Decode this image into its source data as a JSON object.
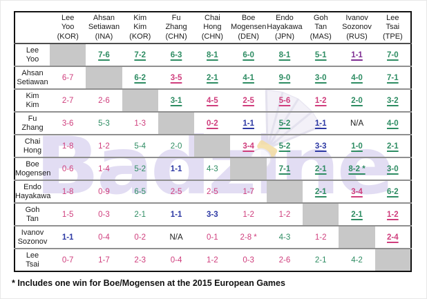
{
  "watermark": {
    "text": "Badzine"
  },
  "footnote": "* Includes one win for Boe/Mogensen at the 2015 European Games",
  "colors": {
    "win": "#2d8c62",
    "loss": "#cf3d7c",
    "tie": "#2c38a3",
    "tie_special": "#7e2d92",
    "na": "#1a1a1a",
    "diagonal": "#c8c8c8",
    "border": "#111111",
    "row_line": "#8f8f8f",
    "watermark": "#e2ddf3"
  },
  "columns": [
    {
      "line1": "Lee",
      "line2": "Yoo",
      "country": "(KOR)"
    },
    {
      "line1": "Ahsan",
      "line2": "Setiawan",
      "country": "(INA)"
    },
    {
      "line1": "Kim",
      "line2": "Kim",
      "country": "(KOR)"
    },
    {
      "line1": "Fu",
      "line2": "Zhang",
      "country": "(CHN)"
    },
    {
      "line1": "Chai",
      "line2": "Hong",
      "country": "(CHN)"
    },
    {
      "line1": "Boe",
      "line2": "Mogensen",
      "country": "(DEN)"
    },
    {
      "line1": "Endo",
      "line2": "Hayakawa",
      "country": "(JPN)"
    },
    {
      "line1": "Goh",
      "line2": "Tan",
      "country": "(MAS)"
    },
    {
      "line1": "Ivanov",
      "line2": "Sozonov",
      "country": "(RUS)"
    },
    {
      "line1": "Lee",
      "line2": "Tsai",
      "country": "(TPE)"
    }
  ],
  "rows": [
    {
      "line1": "Lee",
      "line2": "Yoo",
      "cells": [
        {
          "diag": true
        },
        {
          "v": "7-6",
          "r": "win",
          "u": true
        },
        {
          "v": "7-2",
          "r": "win",
          "u": true
        },
        {
          "v": "6-3",
          "r": "win",
          "u": true
        },
        {
          "v": "8-1",
          "r": "win",
          "u": true
        },
        {
          "v": "6-0",
          "r": "win",
          "u": true
        },
        {
          "v": "8-1",
          "r": "win",
          "u": true
        },
        {
          "v": "5-1",
          "r": "win",
          "u": true
        },
        {
          "v": "1-1",
          "r": "tiep",
          "u": true
        },
        {
          "v": "7-0",
          "r": "win",
          "u": true
        }
      ]
    },
    {
      "line1": "Ahsan",
      "line2": "Setiawan",
      "cells": [
        {
          "v": "6-7",
          "r": "loss",
          "u": false
        },
        {
          "diag": true
        },
        {
          "v": "6-2",
          "r": "win",
          "u": true
        },
        {
          "v": "3-5",
          "r": "loss",
          "u": true
        },
        {
          "v": "2-1",
          "r": "win",
          "u": true
        },
        {
          "v": "4-1",
          "r": "win",
          "u": true
        },
        {
          "v": "9-0",
          "r": "win",
          "u": true
        },
        {
          "v": "3-0",
          "r": "win",
          "u": true
        },
        {
          "v": "4-0",
          "r": "win",
          "u": true
        },
        {
          "v": "7-1",
          "r": "win",
          "u": true
        }
      ]
    },
    {
      "line1": "Kim",
      "line2": "Kim",
      "cells": [
        {
          "v": "2-7",
          "r": "loss",
          "u": false
        },
        {
          "v": "2-6",
          "r": "loss",
          "u": false
        },
        {
          "diag": true
        },
        {
          "v": "3-1",
          "r": "win",
          "u": true
        },
        {
          "v": "4-5",
          "r": "loss",
          "u": true
        },
        {
          "v": "2-5",
          "r": "loss",
          "u": true
        },
        {
          "v": "5-6",
          "r": "loss",
          "u": true
        },
        {
          "v": "1-2",
          "r": "loss",
          "u": true
        },
        {
          "v": "2-0",
          "r": "win",
          "u": true
        },
        {
          "v": "3-2",
          "r": "win",
          "u": true
        }
      ]
    },
    {
      "line1": "Fu",
      "line2": "Zhang",
      "cells": [
        {
          "v": "3-6",
          "r": "loss",
          "u": false
        },
        {
          "v": "5-3",
          "r": "win",
          "u": false
        },
        {
          "v": "1-3",
          "r": "loss",
          "u": false
        },
        {
          "diag": true
        },
        {
          "v": "0-2",
          "r": "loss",
          "u": true
        },
        {
          "v": "1-1",
          "r": "tie",
          "u": true
        },
        {
          "v": "5-2",
          "r": "win",
          "u": true
        },
        {
          "v": "1-1",
          "r": "tie",
          "u": true
        },
        {
          "v": "N/A",
          "r": "na",
          "u": false
        },
        {
          "v": "4-0",
          "r": "win",
          "u": true
        }
      ]
    },
    {
      "line1": "Chai",
      "line2": "Hong",
      "cells": [
        {
          "v": "1-8",
          "r": "loss",
          "u": false
        },
        {
          "v": "1-2",
          "r": "loss",
          "u": false
        },
        {
          "v": "5-4",
          "r": "win",
          "u": false
        },
        {
          "v": "2-0",
          "r": "win",
          "u": false
        },
        {
          "diag": true
        },
        {
          "v": "3-4",
          "r": "loss",
          "u": true
        },
        {
          "v": "5-2",
          "r": "win",
          "u": true
        },
        {
          "v": "3-3",
          "r": "tie",
          "u": true
        },
        {
          "v": "1-0",
          "r": "win",
          "u": true
        },
        {
          "v": "2-1",
          "r": "win",
          "u": true
        }
      ]
    },
    {
      "line1": "Boe",
      "line2": "Mogensen",
      "cells": [
        {
          "v": "0-6",
          "r": "loss",
          "u": false
        },
        {
          "v": "1-4",
          "r": "loss",
          "u": false
        },
        {
          "v": "5-2",
          "r": "win",
          "u": false
        },
        {
          "v": "1-1",
          "r": "tie",
          "u": false
        },
        {
          "v": "4-3",
          "r": "win",
          "u": false
        },
        {
          "diag": true
        },
        {
          "v": "7-1",
          "r": "win",
          "u": true
        },
        {
          "v": "2-1",
          "r": "win",
          "u": true
        },
        {
          "v": "8-2 *",
          "r": "win",
          "u": true
        },
        {
          "v": "3-0",
          "r": "win",
          "u": true
        }
      ]
    },
    {
      "line1": "Endo",
      "line2": "Hayakawa",
      "cells": [
        {
          "v": "1-8",
          "r": "loss",
          "u": false
        },
        {
          "v": "0-9",
          "r": "loss",
          "u": false
        },
        {
          "v": "6-5",
          "r": "win",
          "u": false
        },
        {
          "v": "2-5",
          "r": "loss",
          "u": false
        },
        {
          "v": "2-5",
          "r": "loss",
          "u": false
        },
        {
          "v": "1-7",
          "r": "loss",
          "u": false
        },
        {
          "diag": true
        },
        {
          "v": "2-1",
          "r": "win",
          "u": true
        },
        {
          "v": "3-4",
          "r": "loss",
          "u": true
        },
        {
          "v": "6-2",
          "r": "win",
          "u": true
        }
      ]
    },
    {
      "line1": "Goh",
      "line2": "Tan",
      "cells": [
        {
          "v": "1-5",
          "r": "loss",
          "u": false
        },
        {
          "v": "0-3",
          "r": "loss",
          "u": false
        },
        {
          "v": "2-1",
          "r": "win",
          "u": false
        },
        {
          "v": "1-1",
          "r": "tie",
          "u": false
        },
        {
          "v": "3-3",
          "r": "tie",
          "u": false
        },
        {
          "v": "1-2",
          "r": "loss",
          "u": false
        },
        {
          "v": "1-2",
          "r": "loss",
          "u": false
        },
        {
          "diag": true
        },
        {
          "v": "2-1",
          "r": "win",
          "u": true
        },
        {
          "v": "1-2",
          "r": "loss",
          "u": true
        }
      ]
    },
    {
      "line1": "Ivanov",
      "line2": "Sozonov",
      "cells": [
        {
          "v": "1-1",
          "r": "tie",
          "u": false
        },
        {
          "v": "0-4",
          "r": "loss",
          "u": false
        },
        {
          "v": "0-2",
          "r": "loss",
          "u": false
        },
        {
          "v": "N/A",
          "r": "na",
          "u": false
        },
        {
          "v": "0-1",
          "r": "loss",
          "u": false
        },
        {
          "v": "2-8 *",
          "r": "loss",
          "u": false
        },
        {
          "v": "4-3",
          "r": "win",
          "u": false
        },
        {
          "v": "1-2",
          "r": "loss",
          "u": false
        },
        {
          "diag": true
        },
        {
          "v": "2-4",
          "r": "loss",
          "u": true
        }
      ]
    },
    {
      "line1": "Lee",
      "line2": "Tsai",
      "cells": [
        {
          "v": "0-7",
          "r": "loss",
          "u": false
        },
        {
          "v": "1-7",
          "r": "loss",
          "u": false
        },
        {
          "v": "2-3",
          "r": "loss",
          "u": false
        },
        {
          "v": "0-4",
          "r": "loss",
          "u": false
        },
        {
          "v": "1-2",
          "r": "loss",
          "u": false
        },
        {
          "v": "0-3",
          "r": "loss",
          "u": false
        },
        {
          "v": "2-6",
          "r": "loss",
          "u": false
        },
        {
          "v": "2-1",
          "r": "win",
          "u": false
        },
        {
          "v": "4-2",
          "r": "win",
          "u": false
        },
        {
          "diag": true
        }
      ]
    }
  ],
  "chart_data": {
    "type": "table",
    "columns": [
      "Lee/Yoo (KOR)",
      "Ahsan/Setiawan (INA)",
      "Kim/Kim (KOR)",
      "Fu/Zhang (CHN)",
      "Chai/Hong (CHN)",
      "Boe/Mogensen (DEN)",
      "Endo/Hayakawa (JPN)",
      "Goh/Tan (MAS)",
      "Ivanov/Sozonov (RUS)",
      "Lee/Tsai (TPE)"
    ],
    "rows": [
      "Lee/Yoo",
      "Ahsan/Setiawan",
      "Kim/Kim",
      "Fu/Zhang",
      "Chai/Hong",
      "Boe/Mogensen",
      "Endo/Hayakawa",
      "Goh/Tan",
      "Ivanov/Sozonov",
      "Lee/Tsai"
    ],
    "matrix": [
      [
        null,
        "7-6",
        "7-2",
        "6-3",
        "8-1",
        "6-0",
        "8-1",
        "5-1",
        "1-1",
        "7-0"
      ],
      [
        "6-7",
        null,
        "6-2",
        "3-5",
        "2-1",
        "4-1",
        "9-0",
        "3-0",
        "4-0",
        "7-1"
      ],
      [
        "2-7",
        "2-6",
        null,
        "3-1",
        "4-5",
        "2-5",
        "5-6",
        "1-2",
        "2-0",
        "3-2"
      ],
      [
        "3-6",
        "5-3",
        "1-3",
        null,
        "0-2",
        "1-1",
        "5-2",
        "1-1",
        "N/A",
        "4-0"
      ],
      [
        "1-8",
        "1-2",
        "5-4",
        "2-0",
        null,
        "3-4",
        "5-2",
        "3-3",
        "1-0",
        "2-1"
      ],
      [
        "0-6",
        "1-4",
        "5-2",
        "1-1",
        "4-3",
        null,
        "7-1",
        "2-1",
        "8-2 *",
        "3-0"
      ],
      [
        "1-8",
        "0-9",
        "6-5",
        "2-5",
        "2-5",
        "1-7",
        null,
        "2-1",
        "3-4",
        "6-2"
      ],
      [
        "1-5",
        "0-3",
        "2-1",
        "1-1",
        "3-3",
        "1-2",
        "1-2",
        null,
        "2-1",
        "1-2"
      ],
      [
        "1-1",
        "0-4",
        "0-2",
        "N/A",
        "0-1",
        "2-8 *",
        "4-3",
        "1-2",
        null,
        "2-4"
      ],
      [
        "0-7",
        "1-7",
        "2-3",
        "0-4",
        "1-2",
        "0-3",
        "2-6",
        "2-1",
        "4-2",
        null
      ]
    ],
    "footnote": "* Includes one win for Boe/Mogensen at the 2015 European Games"
  }
}
